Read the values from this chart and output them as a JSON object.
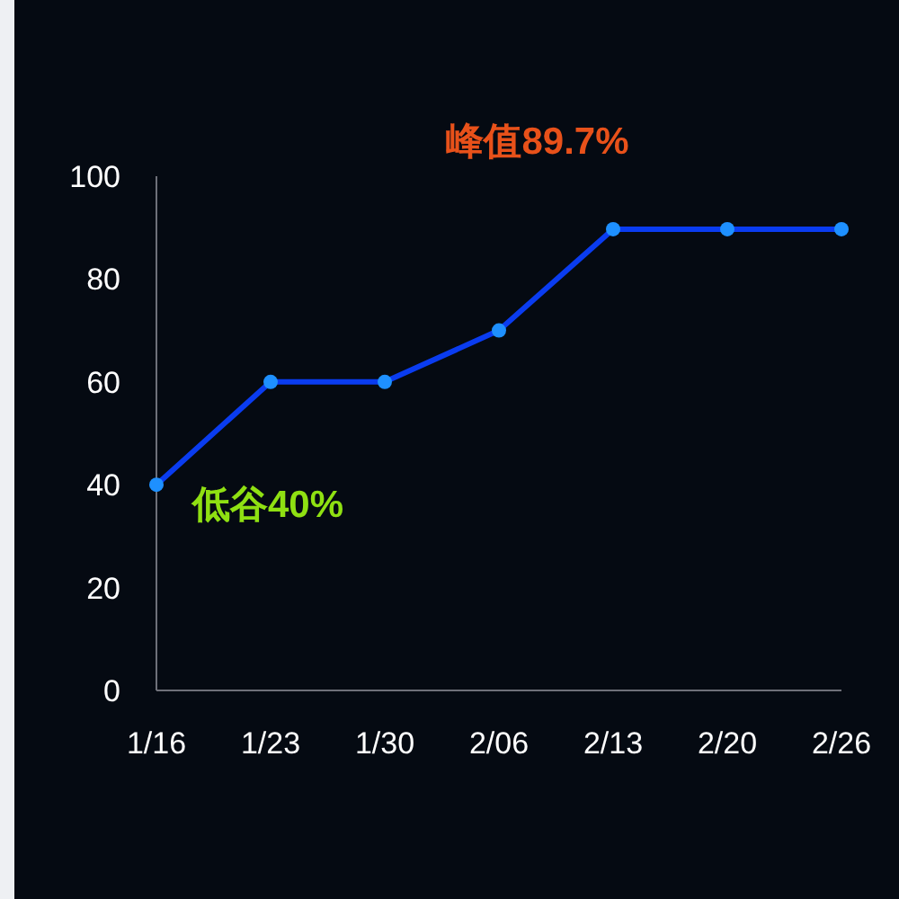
{
  "chart_data": {
    "type": "line",
    "categories": [
      "1/16",
      "1/23",
      "1/30",
      "2/06",
      "2/13",
      "2/20",
      "2/26"
    ],
    "series": [
      {
        "color": "#0a3cf0",
        "values": [
          40,
          60,
          60,
          70,
          89.7,
          89.7,
          89.7
        ]
      }
    ],
    "marker": "circle",
    "ylim": [
      0,
      100
    ],
    "yticks": [
      0,
      20,
      40,
      60,
      80,
      100
    ],
    "grid": false,
    "annotations": [
      {
        "text": "峰值89.7%",
        "x": "2/13",
        "y": 89.7
      },
      {
        "text": "低谷40%",
        "x": "1/16",
        "y": 40
      }
    ]
  }
}
